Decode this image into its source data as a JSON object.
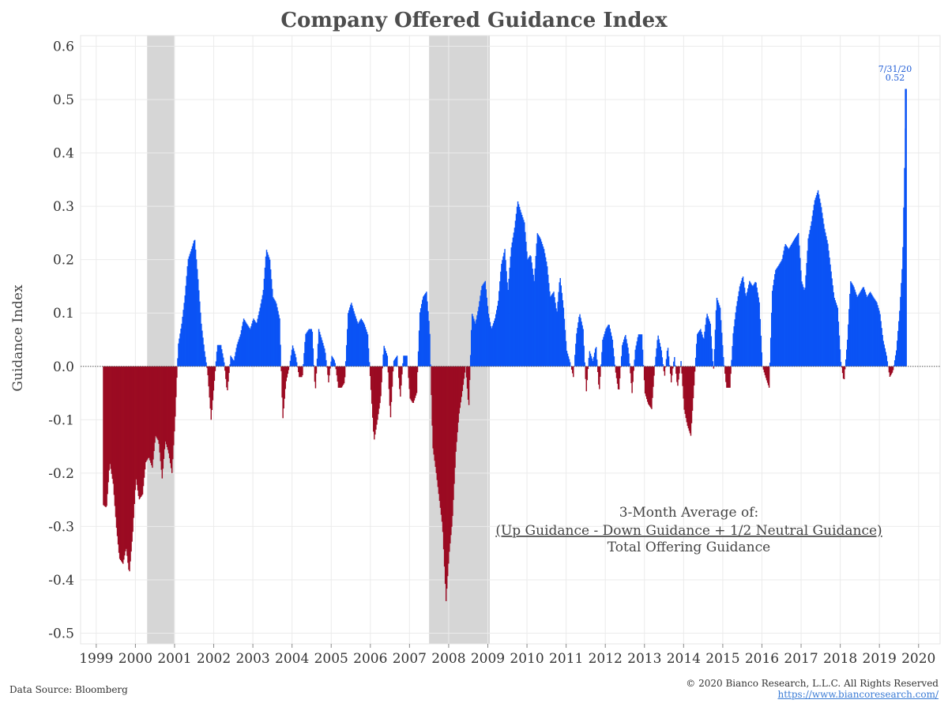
{
  "chart_data": {
    "type": "bar",
    "title": "Company Offered Guidance Index",
    "ylabel": "Guidance Index",
    "xlabel": "",
    "ylim": [
      -0.52,
      0.62
    ],
    "xlim": [
      1998.6,
      2020.55
    ],
    "yticks": [
      "0.6",
      "0.5",
      "0.4",
      "0.3",
      "0.2",
      "0.1",
      "0.0",
      "-0.1",
      "-0.2",
      "-0.3",
      "-0.4",
      "-0.5"
    ],
    "ytick_values": [
      0.6,
      0.5,
      0.4,
      0.3,
      0.2,
      0.1,
      0.0,
      -0.1,
      -0.2,
      -0.3,
      -0.4,
      -0.5
    ],
    "xticks": [
      "1999",
      "2000",
      "2001",
      "2002",
      "2003",
      "2004",
      "2005",
      "2006",
      "2007",
      "2008",
      "2009",
      "2010",
      "2011",
      "2012",
      "2013",
      "2014",
      "2015",
      "2016",
      "2017",
      "2018",
      "2019",
      "2020"
    ],
    "xtick_values": [
      1999,
      2000,
      2001,
      2002,
      2003,
      2004,
      2005,
      2006,
      2007,
      2008,
      2009,
      2010,
      2011,
      2012,
      2013,
      2014,
      2015,
      2016,
      2017,
      2018,
      2019,
      2020
    ],
    "grid": true,
    "recession_shading": [
      [
        2000.3,
        2001.0
      ],
      [
        2007.5,
        2009.05
      ]
    ],
    "colors": {
      "positive": "#0a53f5",
      "negative": "#9b0b22",
      "shading": "#d6d6d6",
      "grid": "#ebebeb",
      "zero_line": "#555555"
    },
    "series_points": [
      [
        1999.17,
        -0.26
      ],
      [
        1999.25,
        -0.265
      ],
      [
        1999.33,
        -0.18
      ],
      [
        1999.42,
        -0.22
      ],
      [
        1999.5,
        -0.3
      ],
      [
        1999.58,
        -0.36
      ],
      [
        1999.67,
        -0.37
      ],
      [
        1999.75,
        -0.34
      ],
      [
        1999.83,
        -0.39
      ],
      [
        1999.92,
        -0.31
      ],
      [
        2000.0,
        -0.21
      ],
      [
        2000.08,
        -0.25
      ],
      [
        2000.17,
        -0.24
      ],
      [
        2000.25,
        -0.18
      ],
      [
        2000.33,
        -0.17
      ],
      [
        2000.42,
        -0.19
      ],
      [
        2000.5,
        -0.13
      ],
      [
        2000.58,
        -0.14
      ],
      [
        2000.67,
        -0.21
      ],
      [
        2000.75,
        -0.14
      ],
      [
        2000.83,
        -0.16
      ],
      [
        2000.92,
        -0.2
      ],
      [
        2001.0,
        -0.1
      ],
      [
        2001.04,
        -0.03
      ],
      [
        2001.08,
        0.04
      ],
      [
        2001.17,
        0.08
      ],
      [
        2001.25,
        0.13
      ],
      [
        2001.33,
        0.2
      ],
      [
        2001.42,
        0.22
      ],
      [
        2001.5,
        0.24
      ],
      [
        2001.58,
        0.17
      ],
      [
        2001.67,
        0.08
      ],
      [
        2001.75,
        0.03
      ],
      [
        2001.83,
        -0.01
      ],
      [
        2001.92,
        -0.1
      ],
      [
        2002.0,
        -0.03
      ],
      [
        2002.08,
        0.04
      ],
      [
        2002.17,
        0.04
      ],
      [
        2002.25,
        0.01
      ],
      [
        2002.33,
        -0.05
      ],
      [
        2002.42,
        0.02
      ],
      [
        2002.5,
        0.01
      ],
      [
        2002.58,
        0.04
      ],
      [
        2002.67,
        0.06
      ],
      [
        2002.75,
        0.09
      ],
      [
        2002.83,
        0.08
      ],
      [
        2002.92,
        0.07
      ],
      [
        2003.0,
        0.09
      ],
      [
        2003.08,
        0.08
      ],
      [
        2003.17,
        0.11
      ],
      [
        2003.25,
        0.14
      ],
      [
        2003.33,
        0.22
      ],
      [
        2003.42,
        0.2
      ],
      [
        2003.5,
        0.13
      ],
      [
        2003.58,
        0.12
      ],
      [
        2003.67,
        0.09
      ],
      [
        2003.75,
        -0.1
      ],
      [
        2003.83,
        -0.03
      ],
      [
        2003.92,
        0.0
      ],
      [
        2004.0,
        0.04
      ],
      [
        2004.08,
        0.02
      ],
      [
        2004.17,
        -0.02
      ],
      [
        2004.25,
        -0.02
      ],
      [
        2004.33,
        0.06
      ],
      [
        2004.42,
        0.07
      ],
      [
        2004.5,
        0.07
      ],
      [
        2004.58,
        -0.05
      ],
      [
        2004.67,
        0.07
      ],
      [
        2004.75,
        0.05
      ],
      [
        2004.83,
        0.03
      ],
      [
        2004.92,
        -0.03
      ],
      [
        2005.0,
        0.02
      ],
      [
        2005.08,
        0.01
      ],
      [
        2005.17,
        -0.04
      ],
      [
        2005.25,
        -0.04
      ],
      [
        2005.33,
        -0.03
      ],
      [
        2005.42,
        0.1
      ],
      [
        2005.5,
        0.12
      ],
      [
        2005.58,
        0.1
      ],
      [
        2005.67,
        0.08
      ],
      [
        2005.75,
        0.09
      ],
      [
        2005.83,
        0.08
      ],
      [
        2005.92,
        0.06
      ],
      [
        2006.0,
        -0.04
      ],
      [
        2006.08,
        -0.14
      ],
      [
        2006.17,
        -0.1
      ],
      [
        2006.25,
        -0.06
      ],
      [
        2006.33,
        0.04
      ],
      [
        2006.42,
        0.02
      ],
      [
        2006.5,
        -0.1
      ],
      [
        2006.58,
        0.01
      ],
      [
        2006.67,
        0.02
      ],
      [
        2006.75,
        -0.06
      ],
      [
        2006.83,
        0.02
      ],
      [
        2006.92,
        0.02
      ],
      [
        2007.0,
        -0.06
      ],
      [
        2007.08,
        -0.07
      ],
      [
        2007.17,
        -0.05
      ],
      [
        2007.25,
        0.1
      ],
      [
        2007.33,
        0.13
      ],
      [
        2007.42,
        0.14
      ],
      [
        2007.5,
        0.07
      ],
      [
        2007.58,
        -0.15
      ],
      [
        2007.67,
        -0.2
      ],
      [
        2007.75,
        -0.25
      ],
      [
        2007.83,
        -0.3
      ],
      [
        2007.92,
        -0.44
      ],
      [
        2008.0,
        -0.35
      ],
      [
        2008.08,
        -0.29
      ],
      [
        2008.17,
        -0.16
      ],
      [
        2008.25,
        -0.09
      ],
      [
        2008.33,
        -0.05
      ],
      [
        2008.42,
        0.0
      ],
      [
        2008.5,
        -0.08
      ],
      [
        2008.58,
        0.1
      ],
      [
        2008.67,
        0.08
      ],
      [
        2008.75,
        0.11
      ],
      [
        2008.83,
        0.15
      ],
      [
        2008.92,
        0.16
      ],
      [
        2009.0,
        0.1
      ],
      [
        2009.08,
        0.07
      ],
      [
        2009.17,
        0.09
      ],
      [
        2009.25,
        0.12
      ],
      [
        2009.33,
        0.19
      ],
      [
        2009.42,
        0.22
      ],
      [
        2009.5,
        0.14
      ],
      [
        2009.58,
        0.22
      ],
      [
        2009.67,
        0.26
      ],
      [
        2009.75,
        0.31
      ],
      [
        2009.83,
        0.29
      ],
      [
        2009.92,
        0.27
      ],
      [
        2010.0,
        0.2
      ],
      [
        2010.08,
        0.21
      ],
      [
        2010.17,
        0.16
      ],
      [
        2010.25,
        0.25
      ],
      [
        2010.33,
        0.24
      ],
      [
        2010.42,
        0.22
      ],
      [
        2010.5,
        0.19
      ],
      [
        2010.58,
        0.13
      ],
      [
        2010.67,
        0.14
      ],
      [
        2010.75,
        0.1
      ],
      [
        2010.83,
        0.17
      ],
      [
        2010.92,
        0.11
      ],
      [
        2011.0,
        0.03
      ],
      [
        2011.08,
        0.01
      ],
      [
        2011.17,
        -0.02
      ],
      [
        2011.25,
        0.06
      ],
      [
        2011.33,
        0.1
      ],
      [
        2011.42,
        0.07
      ],
      [
        2011.5,
        -0.05
      ],
      [
        2011.58,
        0.03
      ],
      [
        2011.67,
        0.01
      ],
      [
        2011.75,
        0.04
      ],
      [
        2011.83,
        -0.05
      ],
      [
        2011.92,
        0.05
      ],
      [
        2012.0,
        0.07
      ],
      [
        2012.08,
        0.08
      ],
      [
        2012.17,
        0.05
      ],
      [
        2012.25,
        -0.01
      ],
      [
        2012.33,
        -0.05
      ],
      [
        2012.42,
        0.04
      ],
      [
        2012.5,
        0.06
      ],
      [
        2012.58,
        0.03
      ],
      [
        2012.67,
        -0.05
      ],
      [
        2012.75,
        0.03
      ],
      [
        2012.83,
        0.06
      ],
      [
        2012.92,
        0.06
      ],
      [
        2013.0,
        -0.05
      ],
      [
        2013.08,
        -0.07
      ],
      [
        2013.17,
        -0.08
      ],
      [
        2013.25,
        0.0
      ],
      [
        2013.33,
        0.06
      ],
      [
        2013.42,
        0.03
      ],
      [
        2013.5,
        -0.02
      ],
      [
        2013.58,
        0.04
      ],
      [
        2013.67,
        -0.03
      ],
      [
        2013.75,
        0.02
      ],
      [
        2013.83,
        -0.04
      ],
      [
        2013.92,
        0.01
      ],
      [
        2014.0,
        -0.08
      ],
      [
        2014.08,
        -0.11
      ],
      [
        2014.17,
        -0.13
      ],
      [
        2014.25,
        -0.04
      ],
      [
        2014.33,
        0.06
      ],
      [
        2014.42,
        0.07
      ],
      [
        2014.5,
        0.05
      ],
      [
        2014.58,
        0.1
      ],
      [
        2014.67,
        0.08
      ],
      [
        2014.75,
        -0.01
      ],
      [
        2014.83,
        0.13
      ],
      [
        2014.92,
        0.11
      ],
      [
        2015.0,
        0.02
      ],
      [
        2015.08,
        -0.04
      ],
      [
        2015.17,
        -0.04
      ],
      [
        2015.25,
        0.06
      ],
      [
        2015.33,
        0.11
      ],
      [
        2015.42,
        0.15
      ],
      [
        2015.5,
        0.17
      ],
      [
        2015.58,
        0.13
      ],
      [
        2015.67,
        0.16
      ],
      [
        2015.75,
        0.15
      ],
      [
        2015.83,
        0.16
      ],
      [
        2015.92,
        0.12
      ],
      [
        2016.0,
        0.0
      ],
      [
        2016.08,
        -0.02
      ],
      [
        2016.17,
        -0.04
      ],
      [
        2016.25,
        0.14
      ],
      [
        2016.33,
        0.18
      ],
      [
        2016.42,
        0.19
      ],
      [
        2016.5,
        0.2
      ],
      [
        2016.58,
        0.23
      ],
      [
        2016.67,
        0.22
      ],
      [
        2016.75,
        0.23
      ],
      [
        2016.83,
        0.24
      ],
      [
        2016.92,
        0.25
      ],
      [
        2017.0,
        0.16
      ],
      [
        2017.08,
        0.14
      ],
      [
        2017.17,
        0.24
      ],
      [
        2017.25,
        0.27
      ],
      [
        2017.33,
        0.31
      ],
      [
        2017.42,
        0.33
      ],
      [
        2017.5,
        0.3
      ],
      [
        2017.58,
        0.26
      ],
      [
        2017.67,
        0.23
      ],
      [
        2017.75,
        0.18
      ],
      [
        2017.83,
        0.13
      ],
      [
        2017.92,
        0.11
      ],
      [
        2018.0,
        0.01
      ],
      [
        2018.08,
        -0.03
      ],
      [
        2018.17,
        0.05
      ],
      [
        2018.25,
        0.16
      ],
      [
        2018.33,
        0.15
      ],
      [
        2018.42,
        0.13
      ],
      [
        2018.5,
        0.14
      ],
      [
        2018.58,
        0.15
      ],
      [
        2018.67,
        0.13
      ],
      [
        2018.75,
        0.14
      ],
      [
        2018.83,
        0.13
      ],
      [
        2018.92,
        0.12
      ],
      [
        2019.0,
        0.1
      ],
      [
        2019.08,
        0.05
      ],
      [
        2019.17,
        0.02
      ],
      [
        2019.25,
        -0.02
      ],
      [
        2019.33,
        -0.01
      ],
      [
        2019.42,
        0.03
      ],
      [
        2019.5,
        0.1
      ],
      [
        2019.58,
        0.2
      ],
      [
        2019.67,
        0.52
      ]
    ],
    "callout": {
      "date": "7/31/20",
      "value_label": "0.52",
      "value": 0.52
    },
    "annotation_lines": [
      "3-Month Average of:",
      "(Up Guidance - Down Guidance + 1/2 Neutral Guidance)",
      "Total Offering Guidance"
    ]
  },
  "footer": {
    "source": "Data Source: Bloomberg",
    "copyright": "© 2020 Bianco Research, L.L.C. All Rights Reserved",
    "url": "https://www.biancoresearch.com/"
  }
}
